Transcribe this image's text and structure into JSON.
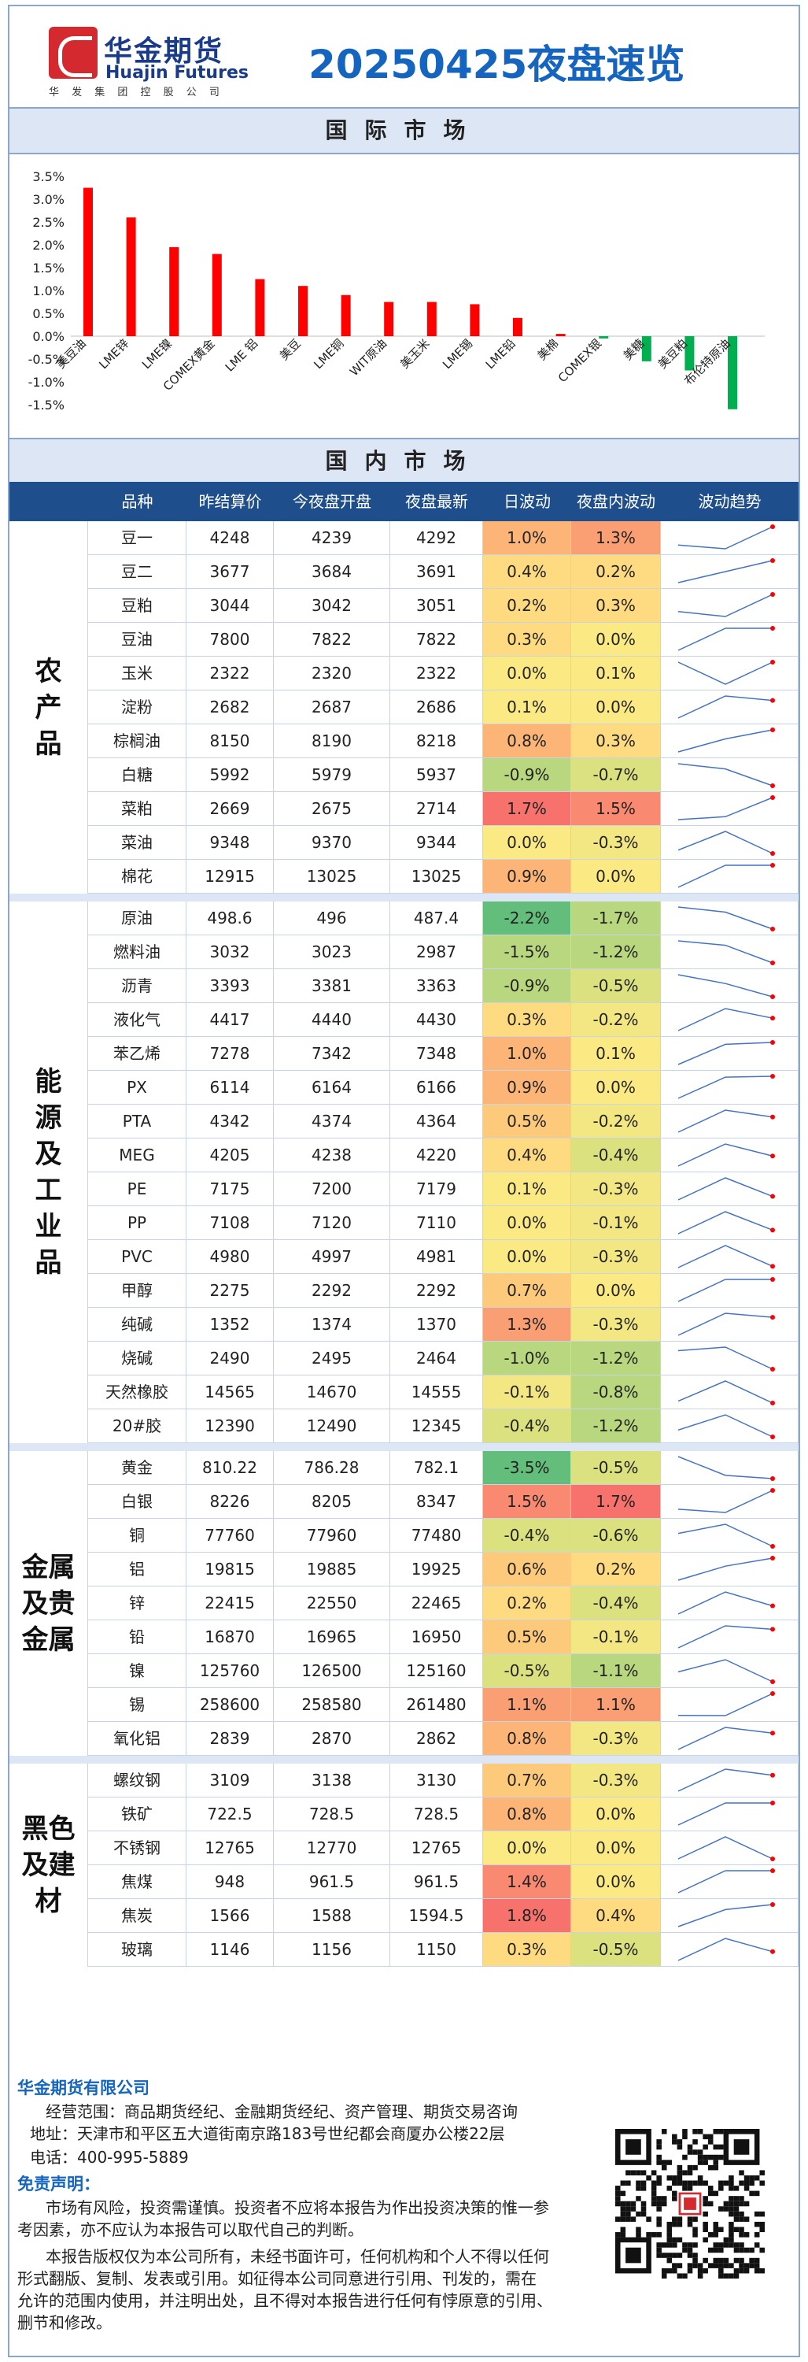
{
  "header": {
    "logo_cn": "华金期货",
    "logo_en": "Huajin Futures",
    "logo_sub": "华 发 集 团 控 股 公 司",
    "title": "20250425夜盘速览"
  },
  "intl_section": "国际市场",
  "domestic_section": "国内市场",
  "chart_data": {
    "type": "bar",
    "title": "",
    "categories": [
      "美豆油",
      "LME锌",
      "LME镍",
      "COMEX黄金",
      "LME 铝",
      "美豆",
      "LME铜",
      "WIT原油",
      "美玉米",
      "LME锡",
      "LME铅",
      "美棉",
      "COMEX银",
      "美糖",
      "美豆粕",
      "布伦特原油"
    ],
    "values": [
      3.25,
      2.6,
      1.95,
      1.8,
      1.25,
      1.1,
      0.9,
      0.75,
      0.75,
      0.7,
      0.4,
      0.05,
      -0.05,
      -0.55,
      -0.75,
      -1.6
    ],
    "colors": [
      "#ff0000",
      "#ff0000",
      "#ff0000",
      "#ff0000",
      "#ff0000",
      "#ff0000",
      "#ff0000",
      "#ff0000",
      "#ff0000",
      "#ff0000",
      "#ff0000",
      "#ff0000",
      "#00b050",
      "#00b050",
      "#00b050",
      "#00b050"
    ],
    "yticks": [
      "3.5%",
      "3.0%",
      "2.5%",
      "2.0%",
      "1.5%",
      "1.0%",
      "0.5%",
      "0.0%",
      "-0.5%",
      "-1.0%",
      "-1.5%"
    ],
    "ylim": [
      -1.5,
      3.5
    ],
    "xlabel": "",
    "ylabel": ""
  },
  "table": {
    "headers": [
      "品种",
      "昨结算价",
      "今夜盘开盘",
      "夜盘最新",
      "日波动",
      "夜盘内波动",
      "波动趋势"
    ],
    "groups": [
      {
        "name": "农产品",
        "rows": [
          [
            "豆一",
            "4248",
            "4239",
            "4292",
            "1.0%",
            "1.3%"
          ],
          [
            "豆二",
            "3677",
            "3684",
            "3691",
            "0.4%",
            "0.2%"
          ],
          [
            "豆粕",
            "3044",
            "3042",
            "3051",
            "0.2%",
            "0.3%"
          ],
          [
            "豆油",
            "7800",
            "7822",
            "7822",
            "0.3%",
            "0.0%"
          ],
          [
            "玉米",
            "2322",
            "2320",
            "2322",
            "0.0%",
            "0.1%"
          ],
          [
            "淀粉",
            "2682",
            "2687",
            "2686",
            "0.1%",
            "0.0%"
          ],
          [
            "棕榈油",
            "8150",
            "8190",
            "8218",
            "0.8%",
            "0.3%"
          ],
          [
            "白糖",
            "5992",
            "5979",
            "5937",
            "-0.9%",
            "-0.7%"
          ],
          [
            "菜粕",
            "2669",
            "2675",
            "2714",
            "1.7%",
            "1.5%"
          ],
          [
            "菜油",
            "9348",
            "9370",
            "9344",
            "0.0%",
            "-0.3%"
          ],
          [
            "棉花",
            "12915",
            "13025",
            "13025",
            "0.9%",
            "0.0%"
          ]
        ]
      },
      {
        "name": "能源及工业品",
        "rows": [
          [
            "原油",
            "498.6",
            "496",
            "487.4",
            "-2.2%",
            "-1.7%"
          ],
          [
            "燃料油",
            "3032",
            "3023",
            "2987",
            "-1.5%",
            "-1.2%"
          ],
          [
            "沥青",
            "3393",
            "3381",
            "3363",
            "-0.9%",
            "-0.5%"
          ],
          [
            "液化气",
            "4417",
            "4440",
            "4430",
            "0.3%",
            "-0.2%"
          ],
          [
            "苯乙烯",
            "7278",
            "7342",
            "7348",
            "1.0%",
            "0.1%"
          ],
          [
            "PX",
            "6114",
            "6164",
            "6166",
            "0.9%",
            "0.0%"
          ],
          [
            "PTA",
            "4342",
            "4374",
            "4364",
            "0.5%",
            "-0.2%"
          ],
          [
            "MEG",
            "4205",
            "4238",
            "4220",
            "0.4%",
            "-0.4%"
          ],
          [
            "PE",
            "7175",
            "7200",
            "7179",
            "0.1%",
            "-0.3%"
          ],
          [
            "PP",
            "7108",
            "7120",
            "7110",
            "0.0%",
            "-0.1%"
          ],
          [
            "PVC",
            "4980",
            "4997",
            "4981",
            "0.0%",
            "-0.3%"
          ],
          [
            "甲醇",
            "2275",
            "2292",
            "2292",
            "0.7%",
            "0.0%"
          ],
          [
            "纯碱",
            "1352",
            "1374",
            "1370",
            "1.3%",
            "-0.3%"
          ],
          [
            "烧碱",
            "2490",
            "2495",
            "2464",
            "-1.0%",
            "-1.2%"
          ],
          [
            "天然橡胶",
            "14565",
            "14670",
            "14555",
            "-0.1%",
            "-0.8%"
          ],
          [
            "20#胶",
            "12390",
            "12490",
            "12345",
            "-0.4%",
            "-1.2%"
          ]
        ]
      },
      {
        "name": "金属及贵金属",
        "rows": [
          [
            "黄金",
            "810.22",
            "786.28",
            "782.1",
            "-3.5%",
            "-0.5%"
          ],
          [
            "白银",
            "8226",
            "8205",
            "8347",
            "1.5%",
            "1.7%"
          ],
          [
            "铜",
            "77760",
            "77960",
            "77480",
            "-0.4%",
            "-0.6%"
          ],
          [
            "铝",
            "19815",
            "19885",
            "19925",
            "0.6%",
            "0.2%"
          ],
          [
            "锌",
            "22415",
            "22550",
            "22465",
            "0.2%",
            "-0.4%"
          ],
          [
            "铅",
            "16870",
            "16965",
            "16950",
            "0.5%",
            "-0.1%"
          ],
          [
            "镍",
            "125760",
            "126500",
            "125160",
            "-0.5%",
            "-1.1%"
          ],
          [
            "锡",
            "258600",
            "258580",
            "261480",
            "1.1%",
            "1.1%"
          ],
          [
            "氧化铝",
            "2839",
            "2870",
            "2862",
            "0.8%",
            "-0.3%"
          ]
        ]
      },
      {
        "name": "黑色及建材",
        "rows": [
          [
            "螺纹钢",
            "3109",
            "3138",
            "3130",
            "0.7%",
            "-0.3%"
          ],
          [
            "铁矿",
            "722.5",
            "728.5",
            "728.5",
            "0.8%",
            "0.0%"
          ],
          [
            "不锈钢",
            "12765",
            "12770",
            "12765",
            "0.0%",
            "0.0%"
          ],
          [
            "焦煤",
            "948",
            "961.5",
            "961.5",
            "1.4%",
            "0.0%"
          ],
          [
            "焦炭",
            "1566",
            "1588",
            "1594.5",
            "1.8%",
            "0.4%"
          ],
          [
            "玻璃",
            "1146",
            "1156",
            "1150",
            "0.3%",
            "-0.5%"
          ]
        ]
      }
    ]
  },
  "footer": {
    "company": "华金期货有限公司",
    "scope": "经营范围：商品期货经纪、金融期货经纪、资产管理、期货交易咨询",
    "address": "地址：天津市和平区五大道街南京路183号世纪都会商厦办公楼22层",
    "phone": "电话：400-995-5889",
    "disclaimer_title": "免责声明：",
    "disclaimer_1": "市场有风险，投资需谨慎。投资者不应将本报告为作出投资决策的惟一参",
    "disclaimer_2": "考因素，亦不应认为本报告可以取代自己的判断。",
    "disclaimer_3": "本报告版权仅为本公司所有，未经书面许可，任何机构和个人不得以任何",
    "disclaimer_4": "形式翻版、复制、发表或引用。如征得本公司同意进行引用、刊发的，需在",
    "disclaimer_5": "允许的范围内使用，并注明出处，且不得对本报告进行任何有悖原意的引用、",
    "disclaimer_6": "删节和修改。"
  }
}
